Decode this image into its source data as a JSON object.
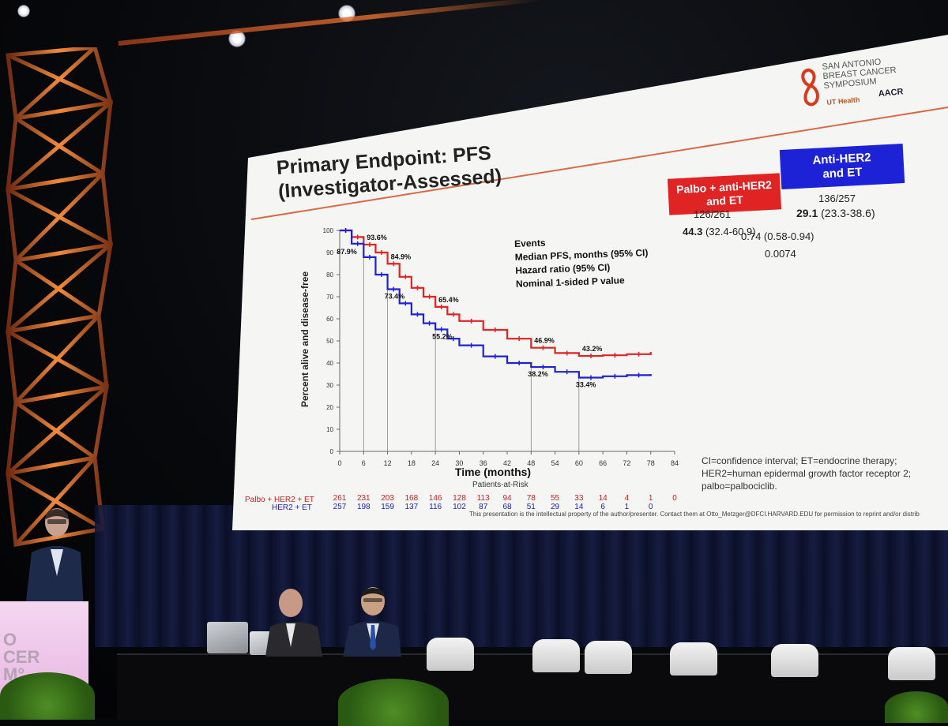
{
  "slide": {
    "title_line1": "Primary Endpoint: PFS",
    "title_line2": "(Investigator-Assessed)",
    "logo": {
      "line1": "SAN ANTONIO",
      "line2": "BREAST CANCER",
      "line3": "SYMPOSIUM",
      "ut": "UT Health",
      "aacr": "AACR"
    },
    "arms": {
      "palbo_label_1": "Palbo + anti-HER2",
      "palbo_label_2": "and ET",
      "anti_label_1": "Anti-HER2",
      "anti_label_2": "and ET",
      "palbo_color": "#e02323",
      "anti_color": "#1e22d6"
    },
    "stats_labels": [
      "Events",
      "Median PFS, months (95% CI)",
      "Hazard ratio (95% CI)",
      "Nominal 1-sided P value"
    ],
    "palbo_events": "126/261",
    "anti_events": "136/257",
    "palbo_median_bold": "44.3",
    "palbo_median_ci": "(32.4-60.9)",
    "anti_median_bold": "29.1",
    "anti_median_ci": "(23.3-38.6)",
    "hazard_ratio": "0.74 (0.58-0.94)",
    "p_value": "0.0074",
    "footnote_1": "CI=confidence interval; ET=endocrine therapy;",
    "footnote_2": "HER2=human epidermal growth factor receptor 2;",
    "footnote_3": "palbo=palbociclib.",
    "copyright": "This presentation is the intellectual property of the author/presenter. Contact them at Otto_Metzger@DFCI.HARVARD.EDU for permission to reprint and/or distrib",
    "risk_header": "Patients-at-Risk",
    "risk_palbo_label": "Palbo + HER2 + ET",
    "risk_anti_label": "HER2 + ET",
    "risk_palbo": [
      "261",
      "231",
      "203",
      "168",
      "146",
      "128",
      "113",
      "94",
      "78",
      "55",
      "33",
      "14",
      "4",
      "1",
      "0"
    ],
    "risk_anti": [
      "257",
      "198",
      "159",
      "137",
      "116",
      "102",
      "87",
      "68",
      "51",
      "29",
      "14",
      "6",
      "1",
      "0"
    ]
  },
  "chart_data": {
    "type": "line",
    "title": "",
    "xlabel": "Time (months)",
    "ylabel": "Percent alive and disease-free",
    "xlim": [
      0,
      84
    ],
    "ylim": [
      0,
      100
    ],
    "xticks": [
      0,
      6,
      12,
      18,
      24,
      30,
      36,
      42,
      48,
      54,
      60,
      66,
      72,
      78,
      84
    ],
    "yticks": [
      0,
      10,
      20,
      30,
      40,
      50,
      60,
      70,
      80,
      90,
      100
    ],
    "series": [
      {
        "name": "Palbo + HER2 + ET",
        "color": "#e02323",
        "x": [
          0,
          3,
          6,
          9,
          12,
          15,
          18,
          21,
          24,
          27,
          30,
          36,
          42,
          48,
          54,
          60,
          66,
          72,
          78
        ],
        "y": [
          100,
          97,
          93.6,
          90,
          84.9,
          79,
          74,
          70,
          65.4,
          62,
          59,
          55,
          51,
          46.9,
          44.5,
          43.2,
          43.5,
          44,
          45
        ],
        "annotations": [
          {
            "x": 6,
            "y": 93.6,
            "label": "93.6%"
          },
          {
            "x": 12,
            "y": 84.9,
            "label": "84.9%"
          },
          {
            "x": 24,
            "y": 65.4,
            "label": "65.4%"
          },
          {
            "x": 48,
            "y": 46.9,
            "label": "46.9%"
          },
          {
            "x": 60,
            "y": 43.2,
            "label": "43.2%"
          }
        ]
      },
      {
        "name": "HER2 + ET",
        "color": "#1e22d6",
        "x": [
          0,
          3,
          6,
          9,
          12,
          15,
          18,
          21,
          24,
          27,
          30,
          36,
          42,
          48,
          54,
          60,
          66,
          72,
          78
        ],
        "y": [
          100,
          94,
          87.9,
          80,
          73.4,
          67,
          62,
          58,
          55.2,
          51,
          48,
          43,
          40,
          38.2,
          36,
          33.4,
          34,
          34.5,
          35
        ],
        "annotations": [
          {
            "x": 6,
            "y": 87.9,
            "label": "87.9%"
          },
          {
            "x": 12,
            "y": 73.4,
            "label": "73.4%"
          },
          {
            "x": 24,
            "y": 55.2,
            "label": "55.2%"
          },
          {
            "x": 48,
            "y": 38.2,
            "label": "38.2%"
          },
          {
            "x": 60,
            "y": 33.4,
            "label": "33.4%"
          }
        ]
      }
    ]
  }
}
